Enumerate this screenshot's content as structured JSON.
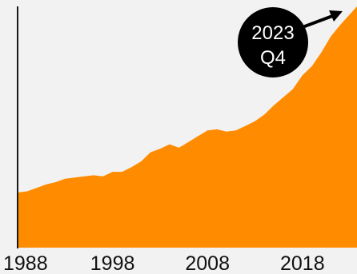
{
  "chart_data": {
    "type": "area",
    "x": [
      1988,
      1989,
      1990,
      1991,
      1992,
      1993,
      1994,
      1995,
      1996,
      1997,
      1998,
      1999,
      2000,
      2001,
      2002,
      2003,
      2004,
      2005,
      2006,
      2007,
      2008,
      2009,
      2010,
      2011,
      2012,
      2013,
      2014,
      2015,
      2016,
      2017,
      2018,
      2019,
      2020,
      2021,
      2022,
      2023.75
    ],
    "series": [
      {
        "values": [
          24,
          24.5,
          26,
          27.5,
          28.5,
          30,
          30.5,
          31,
          31.5,
          31,
          33,
          33,
          35,
          37.5,
          41.5,
          43,
          45,
          43.5,
          46,
          48.5,
          51,
          51.5,
          50.5,
          51,
          53,
          55,
          58,
          62,
          65.5,
          69,
          75,
          79,
          85,
          92,
          97,
          105
        ]
      }
    ],
    "xlim": [
      1988,
      2023.75
    ],
    "ylim": [
      0,
      105
    ],
    "x_ticks": [
      "1988",
      "1998",
      "2008",
      "2018"
    ],
    "grid": false,
    "annotation": {
      "line1": "2023",
      "line2": "Q4"
    },
    "colors": {
      "area": "#ff8c00",
      "axis": "#1a1a1a",
      "background": "#f2f2f2",
      "badge": "#000000",
      "badge_text": "#ffffff"
    }
  }
}
